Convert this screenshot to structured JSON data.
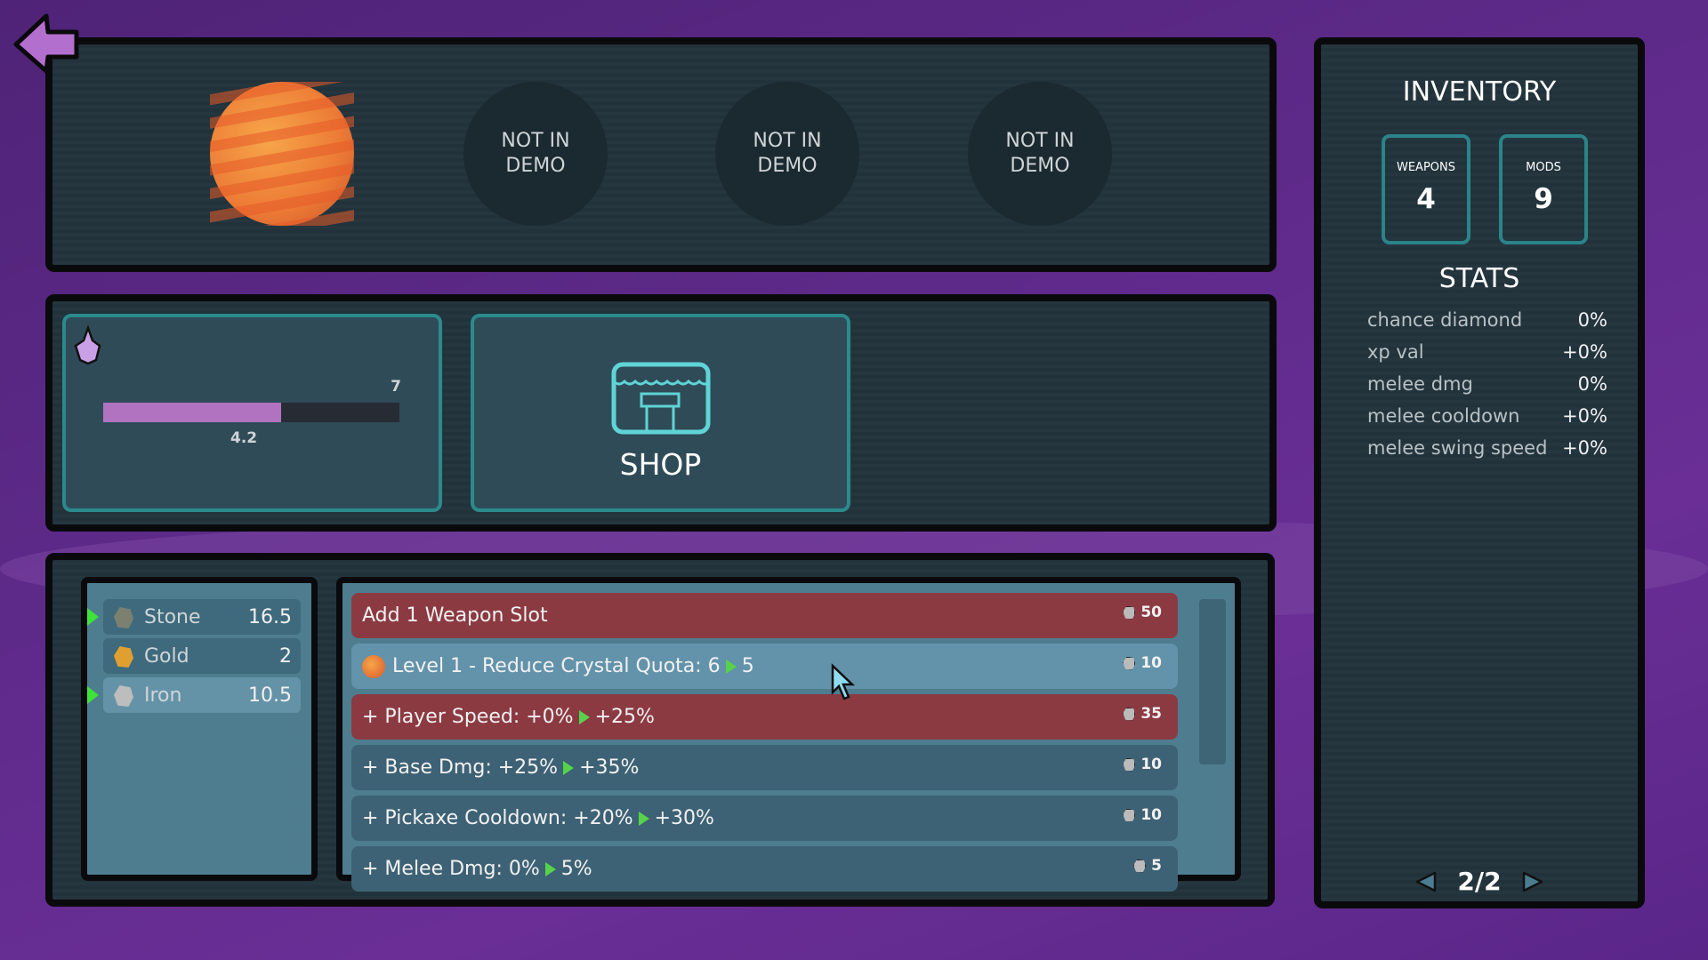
{
  "back_button": {
    "icon": "back-arrow-icon",
    "color": "#b36fce"
  },
  "levels": [
    {
      "type": "planet",
      "icon": "orange-planet-icon"
    },
    {
      "label": "NOT IN DEMO"
    },
    {
      "label": "NOT IN DEMO"
    },
    {
      "label": "NOT IN DEMO"
    }
  ],
  "crystal": {
    "icon": "crystal-icon",
    "max": "7",
    "current": "4.2",
    "progress": 0.6,
    "color": "#b173bf"
  },
  "shop": {
    "label": "SHOP",
    "icon": "shop-icon"
  },
  "resources": [
    {
      "name": "Stone",
      "amount": "16.5",
      "selected": true,
      "color": "#7b8070"
    },
    {
      "name": "Gold",
      "amount": "2",
      "selected": false,
      "color": "#e0a030"
    },
    {
      "name": "Iron",
      "amount": "10.5",
      "selected": true,
      "color": "#bdbdbd"
    }
  ],
  "upgrades": [
    {
      "label": "Add 1 Weapon Slot",
      "cost": "50",
      "style": "red"
    },
    {
      "label": "Level 1 - Reduce Crystal Quota: 6",
      "to": "5",
      "cost": "10",
      "style": "light",
      "planet": true
    },
    {
      "label": "+ Player Speed: +0%",
      "to": "+25%",
      "cost": "35",
      "style": "red"
    },
    {
      "label": "+ Base Dmg: +25%",
      "to": "+35%",
      "cost": "10",
      "style": "dark"
    },
    {
      "label": "+ Pickaxe Cooldown: +20%",
      "to": "+30%",
      "cost": "10",
      "style": "dark"
    },
    {
      "label": "+ Melee Dmg: 0%",
      "to": "5%",
      "cost": "5",
      "style": "dark"
    }
  ],
  "inventory": {
    "title": "INVENTORY",
    "weapons_label": "WEAPONS",
    "weapons": "4",
    "mods_label": "MODS",
    "mods": "9"
  },
  "stats": {
    "title": "STATS",
    "items": [
      {
        "name": "chance diamond",
        "value": "0%"
      },
      {
        "name": "xp val",
        "value": "+0%"
      },
      {
        "name": "melee dmg",
        "value": "0%"
      },
      {
        "name": "melee cooldown",
        "value": "+0%"
      },
      {
        "name": "melee swing speed",
        "value": "+0%"
      }
    ]
  },
  "pagination": {
    "label": "2/2"
  }
}
